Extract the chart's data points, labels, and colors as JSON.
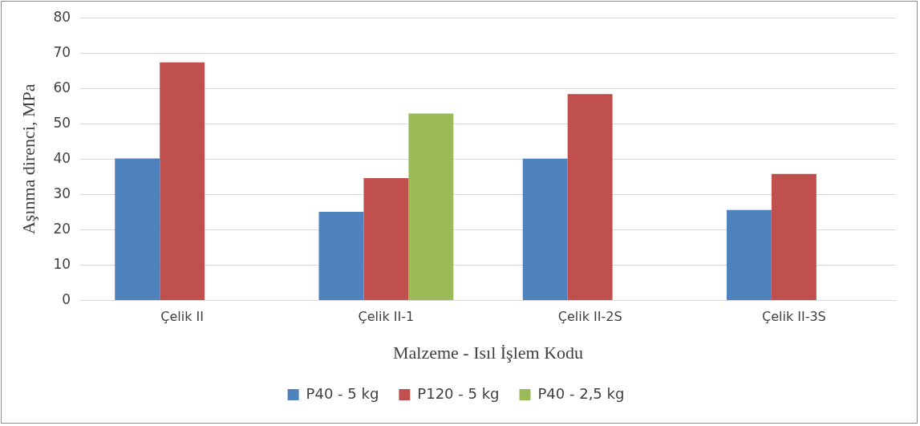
{
  "chart_data": {
    "type": "bar",
    "xlabel": "Malzeme - Isıl İşlem Kodu",
    "ylabel": "Aşınma direnci, MPa",
    "categories": [
      "Çelik II",
      "Çelik II-1",
      "Çelik II-2S",
      "Çelik II-3S"
    ],
    "series": [
      {
        "name": "P40 - 5 kg",
        "color": "#4f81bd",
        "values": [
          40.2,
          25.1,
          40.1,
          25.6
        ]
      },
      {
        "name": "P120 - 5 kg",
        "color": "#c0504d",
        "values": [
          67.4,
          34.6,
          58.4,
          35.8
        ]
      },
      {
        "name": "P40 - 2,5 kg",
        "color": "#9bbb59",
        "values": [
          null,
          52.9,
          null,
          null
        ]
      }
    ],
    "ylim": [
      0,
      80
    ],
    "yticks": [
      0,
      10,
      20,
      30,
      40,
      50,
      60,
      70,
      80
    ],
    "grid": "y",
    "legend": "bottom"
  }
}
